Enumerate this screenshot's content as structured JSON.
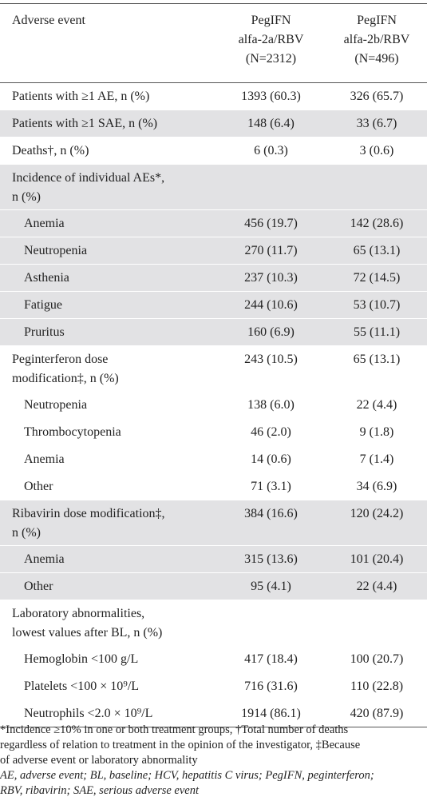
{
  "table": {
    "header": {
      "label": "Adverse event",
      "col2_line1": "PegIFN",
      "col2_line2": "alfa-2a/RBV",
      "col2_line3": "(N=2312)",
      "col3_line1": "PegIFN",
      "col3_line2": "alfa-2b/RBV",
      "col3_line3": "(N=496)"
    },
    "rows": [
      {
        "label": "Patients with ≥1 AE, n (%)",
        "a": "1393 (60.3)",
        "b": "326 (65.7)"
      },
      {
        "label": "Patients with ≥1 SAE, n (%)",
        "a": "148 (6.4)",
        "b": "33 (6.7)"
      },
      {
        "label": "Deaths†, n (%)",
        "a": "6 (0.3)",
        "b": "3 (0.6)"
      },
      {
        "label_line1": "Incidence of individual AEs*,",
        "label_line2": "n (%)"
      },
      {
        "label": "Anemia",
        "a": "456 (19.7)",
        "b": "142 (28.6)"
      },
      {
        "label": "Neutropenia",
        "a": "270 (11.7)",
        "b": "65 (13.1)"
      },
      {
        "label": "Asthenia",
        "a": "237 (10.3)",
        "b": "72 (14.5)"
      },
      {
        "label": "Fatigue",
        "a": "244 (10.6)",
        "b": "53 (10.7)"
      },
      {
        "label": "Pruritus",
        "a": "160 (6.9)",
        "b": "55 (11.1)"
      },
      {
        "label_line1": "Peginterferon dose",
        "label_line2": "modification‡, n (%)",
        "a": "243 (10.5)",
        "b": "65 (13.1)"
      },
      {
        "label": "Neutropenia",
        "a": "138 (6.0)",
        "b": "22 (4.4)"
      },
      {
        "label": "Thrombocytopenia",
        "a": "46 (2.0)",
        "b": "9 (1.8)"
      },
      {
        "label": "Anemia",
        "a": "14 (0.6)",
        "b": "7 (1.4)"
      },
      {
        "label": "Other",
        "a": "71 (3.1)",
        "b": "34 (6.9)"
      },
      {
        "label_line1": "Ribavirin dose modification‡,",
        "label_line2": "n (%)",
        "a": "384 (16.6)",
        "b": "120 (24.2)"
      },
      {
        "label": "Anemia",
        "a": "315 (13.6)",
        "b": "101 (20.4)"
      },
      {
        "label": "Other",
        "a": "95 (4.1)",
        "b": "22 (4.4)"
      },
      {
        "label_line1": "Laboratory abnormalities,",
        "label_line2": "lowest values after BL, n (%)"
      },
      {
        "label": "Hemoglobin <100 g/L",
        "a": "417 (18.4)",
        "b": "100 (20.7)"
      },
      {
        "label": "Platelets <100 × 10⁹/L",
        "a": "716 (31.6)",
        "b": "110 (22.8)"
      },
      {
        "label": "Neutrophils <2.0 × 10⁹/L",
        "a": "1914 (86.1)",
        "b": "420 (87.9)"
      }
    ]
  },
  "footnotes": {
    "line1": "*Incidence ≥10% in one or both treatment groups, †Total number of deaths",
    "line2": "regardless of relation to treatment in the opinion of the investigator, ‡Because",
    "line3": "of adverse event or laboratory abnormality",
    "abbr_line1": "AE, adverse event; BL, baseline; HCV, hepatitis C virus; PegIFN, peginterferon;",
    "abbr_line2": "RBV, ribavirin; SAE, serious adverse event"
  }
}
